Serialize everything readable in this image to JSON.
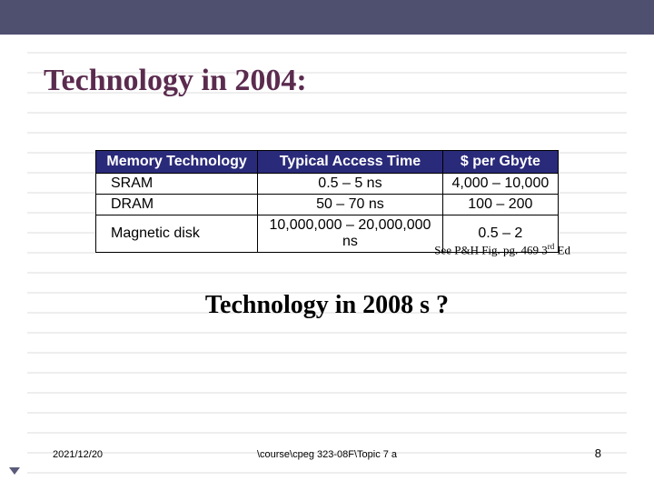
{
  "slide": {
    "title": "Technology in 2004:",
    "subtitle": "Technology in 2008 s ?",
    "caption_prefix": "See P&H Fig. pg. 469 3",
    "caption_sup": "rd",
    "caption_suffix": " Ed",
    "top_bar_color": "#4f4f6f",
    "title_color": "#5b2b4f",
    "rule_color": "#dcdcdc"
  },
  "table": {
    "header_bg": "#2a2a7a",
    "header_fg": "#ffffff",
    "border_color": "#000000",
    "columns": [
      "Memory Technology",
      "Typical Access Time",
      "$ per Gbyte"
    ],
    "col_widths_pct": [
      35,
      40,
      25
    ],
    "rows": [
      [
        "SRAM",
        "0.5 – 5 ns",
        "4,000 – 10,000"
      ],
      [
        "DRAM",
        "50 – 70 ns",
        "100 – 200"
      ],
      [
        "Magnetic disk",
        "10,000,000 – 20,000,000 ns",
        "0.5 – 2"
      ]
    ]
  },
  "footer": {
    "date": "2021/12/20",
    "path": "\\course\\cpeg 323-08F\\Topic 7 a",
    "page": "8"
  }
}
